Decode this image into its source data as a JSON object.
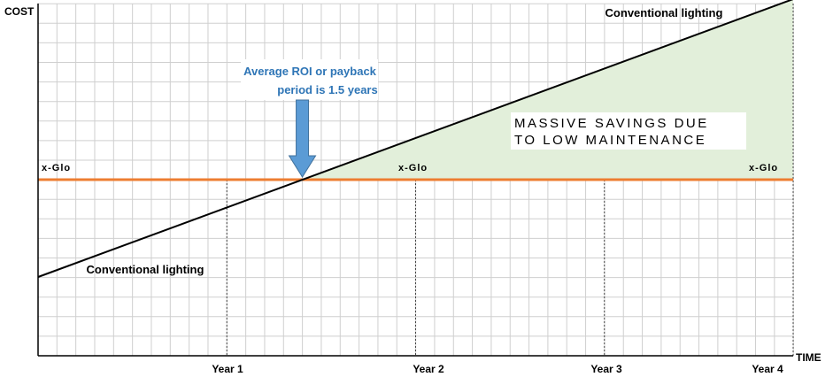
{
  "chart_data": {
    "type": "line",
    "ylabel": "COST",
    "xlabel": "TIME",
    "x_ticks": [
      "Year 1",
      "Year 2",
      "Year 3",
      "Year 4"
    ],
    "xlim": [
      0,
      4
    ],
    "ylim": [
      -1,
      1
    ],
    "grid": true,
    "series": [
      {
        "name": "Conventional lighting",
        "x": [
          0,
          4
        ],
        "y": [
          -0.55,
          1.02
        ],
        "color": "#000000"
      },
      {
        "name": "x-Glo",
        "x": [
          0,
          4
        ],
        "y": [
          0,
          0
        ],
        "color": "#ed7d31"
      }
    ],
    "annotations": {
      "payback": {
        "text_line1": "Average ROI or payback",
        "text_line2": "period is 1.5 years",
        "x": 1.4,
        "color": "#2e75b6",
        "arrow_color": "#5b9bd5"
      },
      "savings": {
        "line1": "MASSIVE SAVINGS DUE",
        "line2": "TO LOW MAINTENANCE",
        "fill": "#e2efda"
      },
      "series_labels": {
        "conventional_top": "Conventional lighting",
        "conventional_bottom": "Conventional lighting",
        "xglo_left": "x-Glo",
        "xglo_middle": "x-Glo",
        "xglo_right": "x-Glo"
      }
    }
  }
}
